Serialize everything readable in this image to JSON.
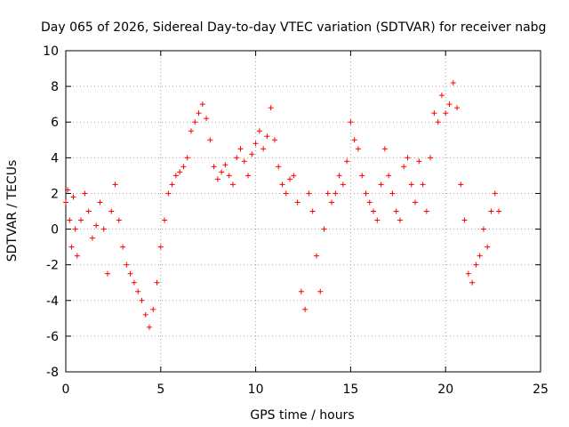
{
  "chart_data": {
    "type": "scatter",
    "title": "Day 065 of 2026, Sidereal Day-to-day VTEC variation (SDTVAR) for receiver nabg",
    "xlabel": "GPS time / hours",
    "ylabel": "SDTVAR / TECUs",
    "xlim": [
      0,
      25
    ],
    "ylim": [
      -8,
      10
    ],
    "xticks": [
      "0",
      "5",
      "10",
      "15",
      "20",
      "25"
    ],
    "yticks": [
      "-8",
      "-6",
      "-4",
      "-2",
      "0",
      "2",
      "4",
      "6",
      "8",
      "10"
    ],
    "grid": true,
    "marker": "+",
    "color": "#ff0000",
    "series": [
      {
        "name": "SDTVAR",
        "x": [
          0.0,
          0.1,
          0.2,
          0.3,
          0.4,
          0.5,
          0.6,
          0.8,
          1.0,
          1.2,
          1.4,
          1.6,
          1.8,
          2.0,
          2.2,
          2.4,
          2.6,
          2.8,
          3.0,
          3.2,
          3.4,
          3.6,
          3.8,
          4.0,
          4.2,
          4.4,
          4.6,
          4.8,
          5.0,
          5.2,
          5.4,
          5.6,
          5.8,
          6.0,
          6.2,
          6.4,
          6.6,
          6.8,
          7.0,
          7.2,
          7.4,
          7.6,
          7.8,
          8.0,
          8.2,
          8.4,
          8.6,
          8.8,
          9.0,
          9.2,
          9.4,
          9.6,
          9.8,
          10.0,
          10.2,
          10.4,
          10.6,
          10.8,
          11.0,
          11.2,
          11.4,
          11.6,
          11.8,
          12.0,
          12.2,
          12.4,
          12.6,
          12.8,
          13.0,
          13.2,
          13.4,
          13.6,
          13.8,
          14.0,
          14.2,
          14.4,
          14.6,
          14.8,
          15.0,
          15.2,
          15.4,
          15.6,
          15.8,
          16.0,
          16.2,
          16.4,
          16.6,
          16.8,
          17.0,
          17.2,
          17.4,
          17.6,
          17.8,
          18.0,
          18.2,
          18.4,
          18.6,
          18.8,
          19.0,
          19.2,
          19.4,
          19.6,
          19.8,
          20.0,
          20.2,
          20.4,
          20.6,
          20.8,
          21.0,
          21.2,
          21.4,
          21.6,
          21.8,
          22.0,
          22.2,
          22.4,
          22.6,
          22.8
        ],
        "y": [
          1.5,
          2.2,
          0.5,
          -1.0,
          1.8,
          0.0,
          -1.5,
          0.5,
          2.0,
          1.0,
          -0.5,
          0.2,
          1.5,
          0.0,
          -2.5,
          1.0,
          2.5,
          0.5,
          -1.0,
          -2.0,
          -2.5,
          -3.0,
          -3.5,
          -4.0,
          -4.8,
          -5.5,
          -4.5,
          -3.0,
          -1.0,
          0.5,
          2.0,
          2.5,
          3.0,
          3.2,
          3.5,
          4.0,
          5.5,
          6.0,
          6.5,
          7.0,
          6.2,
          5.0,
          3.5,
          2.8,
          3.2,
          3.6,
          3.0,
          2.5,
          4.0,
          4.5,
          3.8,
          3.0,
          4.2,
          4.8,
          5.5,
          4.5,
          5.2,
          6.8,
          5.0,
          3.5,
          2.5,
          2.0,
          2.8,
          3.0,
          1.5,
          -3.5,
          -4.5,
          2.0,
          1.0,
          -1.5,
          -3.5,
          0.0,
          2.0,
          1.5,
          2.0,
          3.0,
          2.5,
          3.8,
          6.0,
          5.0,
          4.5,
          3.0,
          2.0,
          1.5,
          1.0,
          0.5,
          2.5,
          4.5,
          3.0,
          2.0,
          1.0,
          0.5,
          3.5,
          4.0,
          2.5,
          1.5,
          3.8,
          2.5,
          1.0,
          4.0,
          6.5,
          6.0,
          7.5,
          6.5,
          7.0,
          8.2,
          6.8,
          2.5,
          0.5,
          -2.5,
          -3.0,
          -2.0,
          -1.5,
          0.0,
          -1.0,
          1.0,
          2.0,
          1.0
        ]
      }
    ]
  }
}
